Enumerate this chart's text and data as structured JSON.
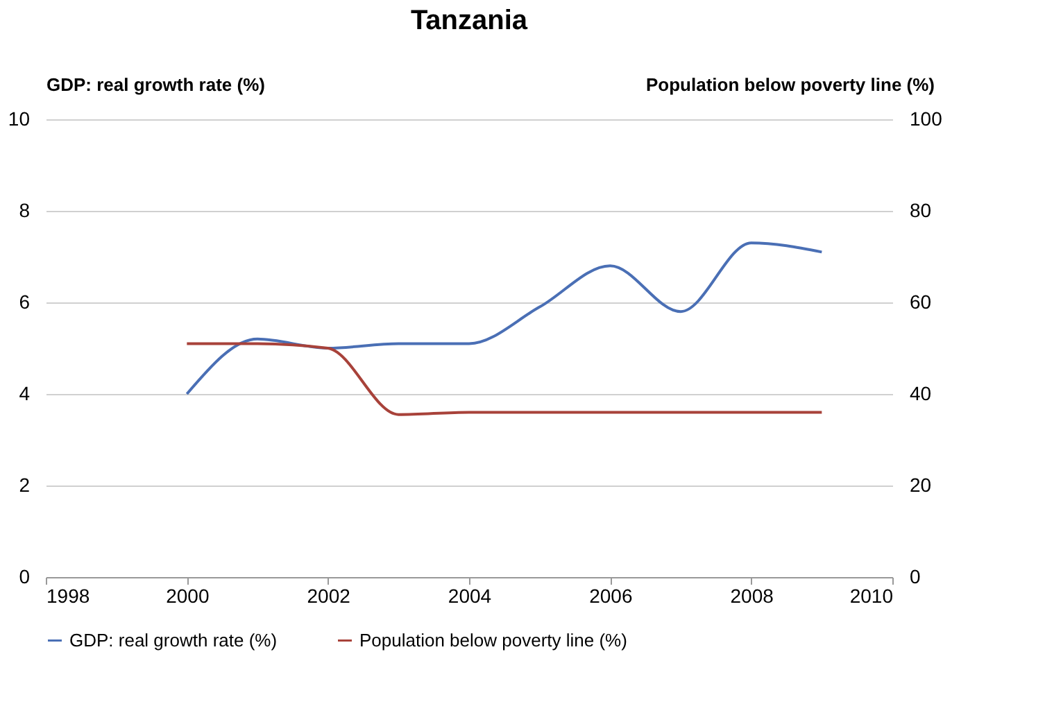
{
  "chart_data": {
    "type": "line",
    "title": "Tanzania",
    "ylabel": "GDP: real growth rate (%)",
    "y2label": "Population below poverty line (%)",
    "x": [
      2000,
      2001,
      2002,
      2003,
      2004,
      2005,
      2006,
      2007,
      2008,
      2009
    ],
    "series": [
      {
        "name": "GDP: real growth rate (%)",
        "color": "#4a6fb5",
        "values": [
          4.0,
          5.2,
          5.0,
          5.1,
          5.1,
          5.9,
          6.8,
          5.8,
          7.3,
          7.1
        ]
      },
      {
        "name": "Population below poverty line (%)",
        "color": "#a8423a",
        "axis": "y2",
        "values": [
          51,
          51,
          50,
          35.5,
          36,
          36,
          36,
          36,
          36,
          36
        ]
      }
    ],
    "xlim": [
      1998,
      2010
    ],
    "xticks": [
      1998,
      2000,
      2002,
      2004,
      2006,
      2008,
      2010
    ],
    "ylim": [
      0,
      10
    ],
    "yticks": [
      0,
      2,
      4,
      6,
      8,
      10
    ],
    "y2lim": [
      0,
      100
    ],
    "y2ticks": [
      0,
      20,
      40,
      60,
      80,
      100
    ],
    "grid": "y",
    "legend": "bottom",
    "marker": "none",
    "line_style": "solid"
  }
}
